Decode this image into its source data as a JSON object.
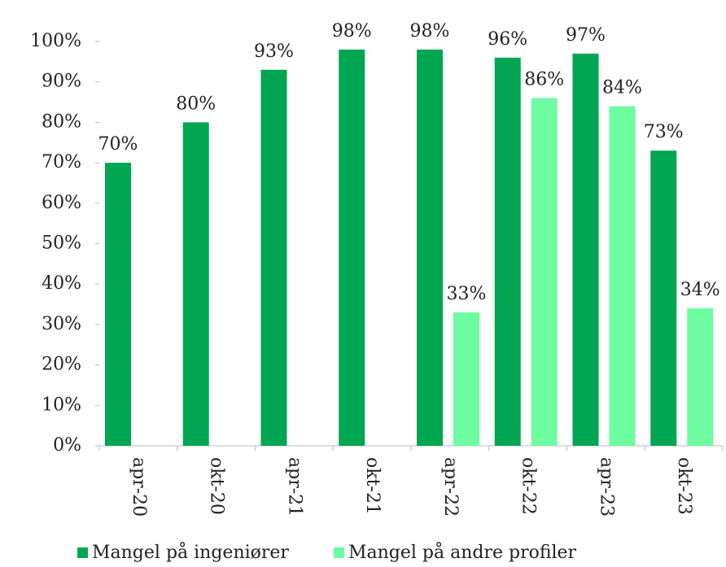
{
  "chart_data": {
    "type": "bar",
    "categories": [
      "apr-20",
      "okt-20",
      "apr-21",
      "okt-21",
      "apr-22",
      "okt-22",
      "apr-23",
      "okt-23"
    ],
    "series": [
      {
        "name": "Mangel på ingeniører",
        "color": "#00a651",
        "values": [
          70,
          80,
          93,
          98,
          98,
          96,
          97,
          73
        ],
        "value_labels": [
          "70%",
          "80%",
          "93%",
          "98%",
          "98%",
          "96%",
          "97%",
          "73%"
        ]
      },
      {
        "name": "Mangel på andre profiler",
        "color": "#6dfca0",
        "values": [
          null,
          null,
          null,
          null,
          33,
          86,
          84,
          34
        ],
        "value_labels": [
          null,
          null,
          null,
          null,
          "33%",
          "86%",
          "84%",
          "34%"
        ]
      }
    ],
    "ylim": [
      0,
      100
    ],
    "yticks": [
      {
        "value": 0,
        "label": "0%"
      },
      {
        "value": 10,
        "label": "10%"
      },
      {
        "value": 20,
        "label": "20%"
      },
      {
        "value": 30,
        "label": "30%"
      },
      {
        "value": 40,
        "label": "40%"
      },
      {
        "value": 50,
        "label": "50%"
      },
      {
        "value": 60,
        "label": "60%"
      },
      {
        "value": 70,
        "label": "70%"
      },
      {
        "value": 80,
        "label": "80%"
      },
      {
        "value": 90,
        "label": "90%"
      },
      {
        "value": 100,
        "label": "100%"
      }
    ],
    "legend": "bottom"
  }
}
